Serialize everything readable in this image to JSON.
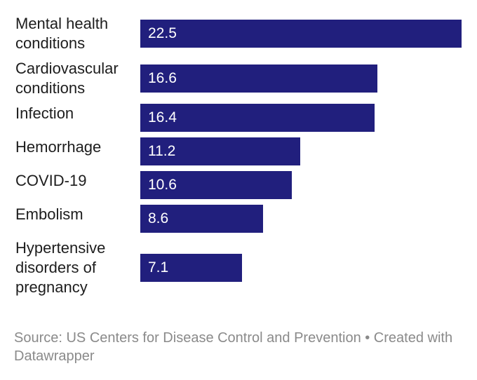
{
  "chart_data": {
    "type": "bar",
    "orientation": "horizontal",
    "categories": [
      "Mental health\nconditions",
      "Cardiovascular\nconditions",
      "Infection",
      "Hemorrhage",
      "COVID-19",
      "Embolism",
      "Hypertensive\ndisorders of\npregnancy"
    ],
    "values": [
      22.5,
      16.6,
      16.4,
      11.2,
      10.6,
      8.6,
      7.1
    ],
    "value_labels": [
      "22.5",
      "16.6",
      "16.4",
      "11.2",
      "10.6",
      "8.6",
      "7.1"
    ],
    "xlim": [
      0,
      22.5
    ],
    "grid": false,
    "legend": "none",
    "bar_color": "#211f7d"
  },
  "footer": {
    "source": "Source: US Centers for Disease Control and Prevention • Created with Datawrapper"
  }
}
